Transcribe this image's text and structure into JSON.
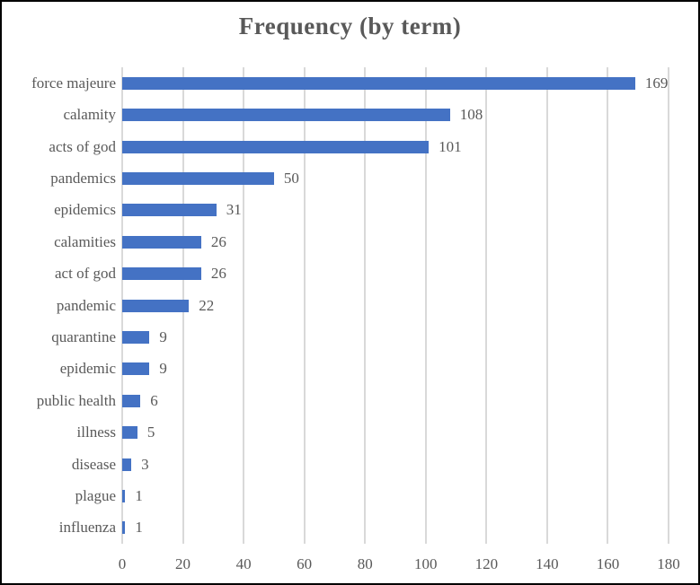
{
  "title": "Frequency (by term)",
  "colors": {
    "bar": "#4472C4",
    "text": "#595959",
    "gridline": "#D9D9D9",
    "background": "#FFFFFF",
    "frame": "#000000"
  },
  "chart_data": {
    "type": "bar",
    "orientation": "horizontal",
    "title": "Frequency (by term)",
    "categories": [
      "force majeure",
      "calamity",
      "acts of god",
      "pandemics",
      "epidemics",
      "calamities",
      "act of god",
      "pandemic",
      "quarantine",
      "epidemic",
      "public health",
      "illness",
      "disease",
      "plague",
      "influenza"
    ],
    "values": [
      169,
      108,
      101,
      50,
      31,
      26,
      26,
      22,
      9,
      9,
      6,
      5,
      3,
      1,
      1
    ],
    "value_labels": [
      169,
      108,
      101,
      50,
      31,
      26,
      26,
      22,
      9,
      9,
      6,
      5,
      3,
      1,
      1
    ],
    "xlabel": "",
    "ylabel": "",
    "xlim": [
      0,
      180
    ],
    "xticks": [
      0,
      20,
      40,
      60,
      80,
      100,
      120,
      140,
      160,
      180
    ],
    "grid": true,
    "legend": false
  }
}
